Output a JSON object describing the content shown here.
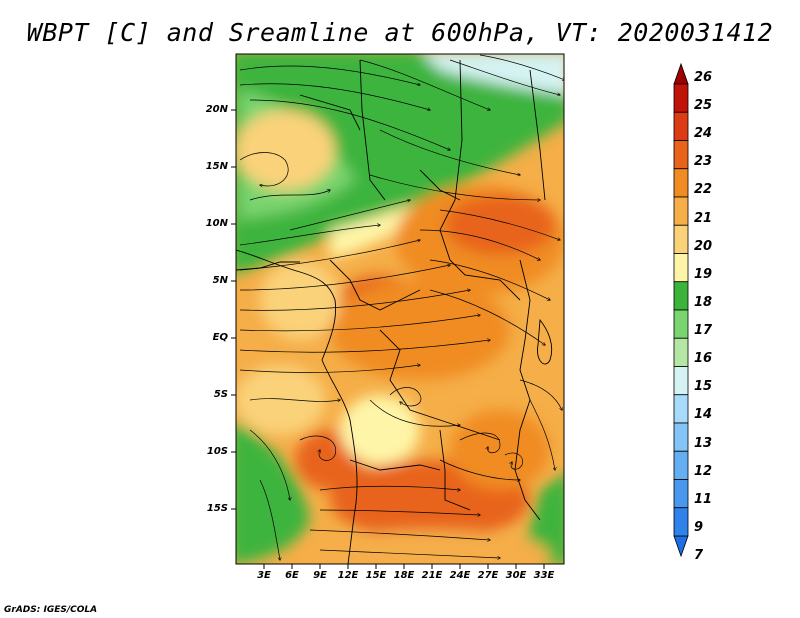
{
  "title": "WBPT [C] and Sreamline at 600hPa, VT: 2020031412",
  "footer": "GrADS: IGES/COLA",
  "lat_labels": [
    "20N",
    "15N",
    "10N",
    "5N",
    "EQ",
    "5S",
    "10S",
    "15S"
  ],
  "lon_labels": [
    "3E",
    "6E",
    "9E",
    "12E",
    "15E",
    "18E",
    "21E",
    "24E",
    "27E",
    "30E",
    "33E"
  ],
  "colorbar": {
    "labels": [
      "7",
      "9",
      "11",
      "12",
      "13",
      "14",
      "15",
      "16",
      "17",
      "18",
      "19",
      "20",
      "21",
      "22",
      "23",
      "24",
      "25",
      "26"
    ],
    "colors": [
      "#1e6ee6",
      "#2f82ea",
      "#4a98ee",
      "#64aef2",
      "#84c4f6",
      "#a8dbf9",
      "#d6f3f3",
      "#b4e6a4",
      "#7ad470",
      "#3cb43c",
      "#fff5a8",
      "#fad27a",
      "#f5ae48",
      "#f08c23",
      "#e8641a",
      "#dc3c14",
      "#c01408",
      "#a00000"
    ]
  },
  "map": {
    "colors": {
      "green_dark": "#3cb43c",
      "green_mid": "#7ad470",
      "green_light": "#b4e6a4",
      "cyan": "#d6f3f3",
      "yellow": "#fff5a8",
      "orange_light": "#f5ae48",
      "orange": "#f08c23",
      "red_orange": "#e8641a"
    }
  }
}
